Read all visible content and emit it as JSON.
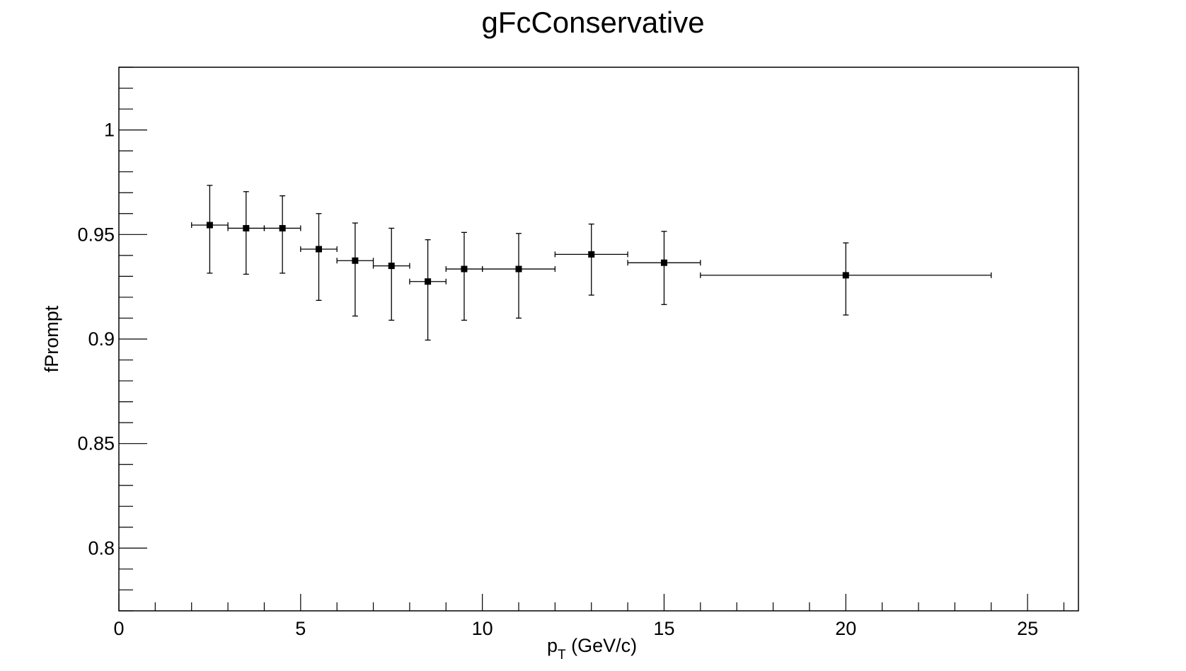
{
  "chart_data": {
    "type": "scatter",
    "title": "gFcConservative",
    "xlabel": {
      "main": "p",
      "sub": "T",
      "rest": " (GeV/c)"
    },
    "ylabel": "fPrompt",
    "xlim": [
      0,
      26.4
    ],
    "ylim": [
      0.77,
      1.03
    ],
    "x_major_ticks": [
      0,
      5,
      10,
      15,
      20,
      25
    ],
    "x_tick_labels": [
      "0",
      "5",
      "10",
      "15",
      "20",
      "25"
    ],
    "x_minor_step": 1,
    "y_major_ticks": [
      0.8,
      0.85,
      0.9,
      0.95,
      1.0
    ],
    "y_tick_labels": [
      "0.8",
      "0.85",
      "0.9",
      "0.95",
      "1"
    ],
    "y_minor_step": 0.01,
    "grid": false,
    "marker": "square",
    "color": "#000000",
    "points": [
      {
        "x": 2.5,
        "xlo": 2,
        "xhi": 3,
        "y": 0.9545,
        "ylo": 0.9315,
        "yhi": 0.9735
      },
      {
        "x": 3.5,
        "xlo": 3,
        "xhi": 4,
        "y": 0.953,
        "ylo": 0.931,
        "yhi": 0.9705
      },
      {
        "x": 4.5,
        "xlo": 4,
        "xhi": 5,
        "y": 0.953,
        "ylo": 0.9315,
        "yhi": 0.9685
      },
      {
        "x": 5.5,
        "xlo": 5,
        "xhi": 6,
        "y": 0.943,
        "ylo": 0.9185,
        "yhi": 0.96
      },
      {
        "x": 6.5,
        "xlo": 6,
        "xhi": 7,
        "y": 0.9375,
        "ylo": 0.911,
        "yhi": 0.9555
      },
      {
        "x": 7.5,
        "xlo": 7,
        "xhi": 8,
        "y": 0.935,
        "ylo": 0.909,
        "yhi": 0.953
      },
      {
        "x": 8.5,
        "xlo": 8,
        "xhi": 9,
        "y": 0.9275,
        "ylo": 0.8995,
        "yhi": 0.9475
      },
      {
        "x": 9.5,
        "xlo": 9,
        "xhi": 10,
        "y": 0.9335,
        "ylo": 0.909,
        "yhi": 0.951
      },
      {
        "x": 11,
        "xlo": 10,
        "xhi": 12,
        "y": 0.9335,
        "ylo": 0.91,
        "yhi": 0.9505
      },
      {
        "x": 13,
        "xlo": 12,
        "xhi": 14,
        "y": 0.9405,
        "ylo": 0.921,
        "yhi": 0.955
      },
      {
        "x": 15,
        "xlo": 14,
        "xhi": 16,
        "y": 0.9365,
        "ylo": 0.9165,
        "yhi": 0.9515
      },
      {
        "x": 20,
        "xlo": 16,
        "xhi": 24,
        "y": 0.9305,
        "ylo": 0.9115,
        "yhi": 0.946
      }
    ]
  }
}
